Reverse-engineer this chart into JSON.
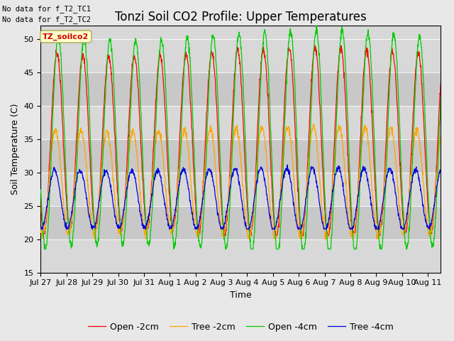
{
  "title": "Tonzi Soil CO2 Profile: Upper Temperatures",
  "ylabel": "Soil Temperature (C)",
  "xlabel": "Time",
  "no_data_lines": [
    "No data for f_T2_TC1",
    "No data for f_T2_TC2"
  ],
  "dataset_label": "TZ_soilco2",
  "ylim": [
    15,
    52
  ],
  "yticks": [
    15,
    20,
    25,
    30,
    35,
    40,
    45,
    50
  ],
  "n_days": 15.5,
  "n_points_per_day": 96,
  "background_color": "#e8e8e8",
  "plot_bg_color": "#d8d8d8",
  "tick_labels": [
    "Jul 27",
    "Jul 28",
    "Jul 29",
    "Jul 30",
    "Jul 31",
    "Aug 1",
    "Aug 2",
    "Aug 3",
    "Aug 4",
    "Aug 5",
    "Aug 6",
    "Aug 7",
    "Aug 8",
    "Aug 9",
    "Aug 10",
    "Aug 11"
  ],
  "series": [
    {
      "label": "Open -2cm",
      "color": "#ff0000",
      "mean": 34.5,
      "amp": 13.5,
      "phase": 0.0,
      "noise": 0.3,
      "min_clip": 20.5,
      "max_clip": 52
    },
    {
      "label": "Tree -2cm",
      "color": "#ffa500",
      "mean": 28.5,
      "amp": 8.0,
      "phase": 0.06,
      "noise": 0.3,
      "min_clip": 20.0,
      "max_clip": 38
    },
    {
      "label": "Open -4cm",
      "color": "#00cc00",
      "mean": 34.5,
      "amp": 16.0,
      "phase": -0.05,
      "noise": 0.3,
      "min_clip": 18.5,
      "max_clip": 52
    },
    {
      "label": "Tree -4cm",
      "color": "#0000dd",
      "mean": 26.0,
      "amp": 4.5,
      "phase": 0.1,
      "noise": 0.2,
      "min_clip": 21.5,
      "max_clip": 32
    }
  ],
  "title_fontsize": 12,
  "label_fontsize": 9,
  "tick_fontsize": 8,
  "nodata_fontsize": 7.5,
  "dataset_label_fontsize": 8,
  "linewidth": 0.9,
  "grid_color": "#c8c8c8",
  "band_colors": [
    "#d8d8d8",
    "#c8c8c8"
  ]
}
